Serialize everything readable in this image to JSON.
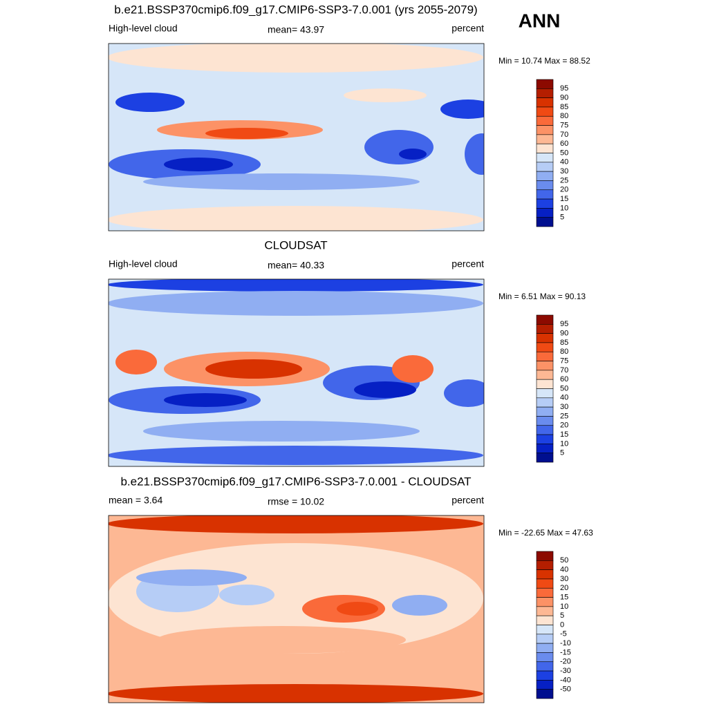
{
  "figure_label": "ANN",
  "colorbar_colors": [
    "#8c0a00",
    "#b41e00",
    "#d83200",
    "#f04a14",
    "#fa6a3a",
    "#fc9266",
    "#fdb894",
    "#fde4d2",
    "#d6e6f8",
    "#b6cdf6",
    "#90aef2",
    "#6a8cee",
    "#4266ea",
    "#1c40e2",
    "#0620c4",
    "#000f8f"
  ],
  "panels": [
    {
      "title": "b.e21.BSSP370cmip6.f09_g17.CMIP6-SSP3-7.0.001 (yrs 2055-2079)",
      "left_label": "High-level cloud",
      "center_label": "mean=  43.97",
      "right_label": "percent",
      "minmax": "Min =  10.74 Max =  88.52",
      "levels": [
        95,
        90,
        85,
        80,
        75,
        70,
        60,
        50,
        40,
        30,
        25,
        20,
        15,
        10,
        5
      ]
    },
    {
      "title": "CLOUDSAT",
      "left_label": "High-level cloud",
      "center_label": "mean=  40.33",
      "right_label": "percent",
      "minmax": "Min =   6.51 Max =  90.13",
      "levels": [
        95,
        90,
        85,
        80,
        75,
        70,
        60,
        50,
        40,
        30,
        25,
        20,
        15,
        10,
        5
      ]
    },
    {
      "title": "b.e21.BSSP370cmip6.f09_g17.CMIP6-SSP3-7.0.001 - CLOUDSAT",
      "left_label": "mean =   3.64",
      "center_label": "rmse =  10.02",
      "right_label": "percent",
      "minmax": "Min = -22.65 Max =  47.63",
      "levels": [
        50,
        40,
        30,
        20,
        15,
        10,
        5,
        0,
        -5,
        -10,
        -15,
        -20,
        -30,
        -40,
        -50
      ]
    }
  ]
}
